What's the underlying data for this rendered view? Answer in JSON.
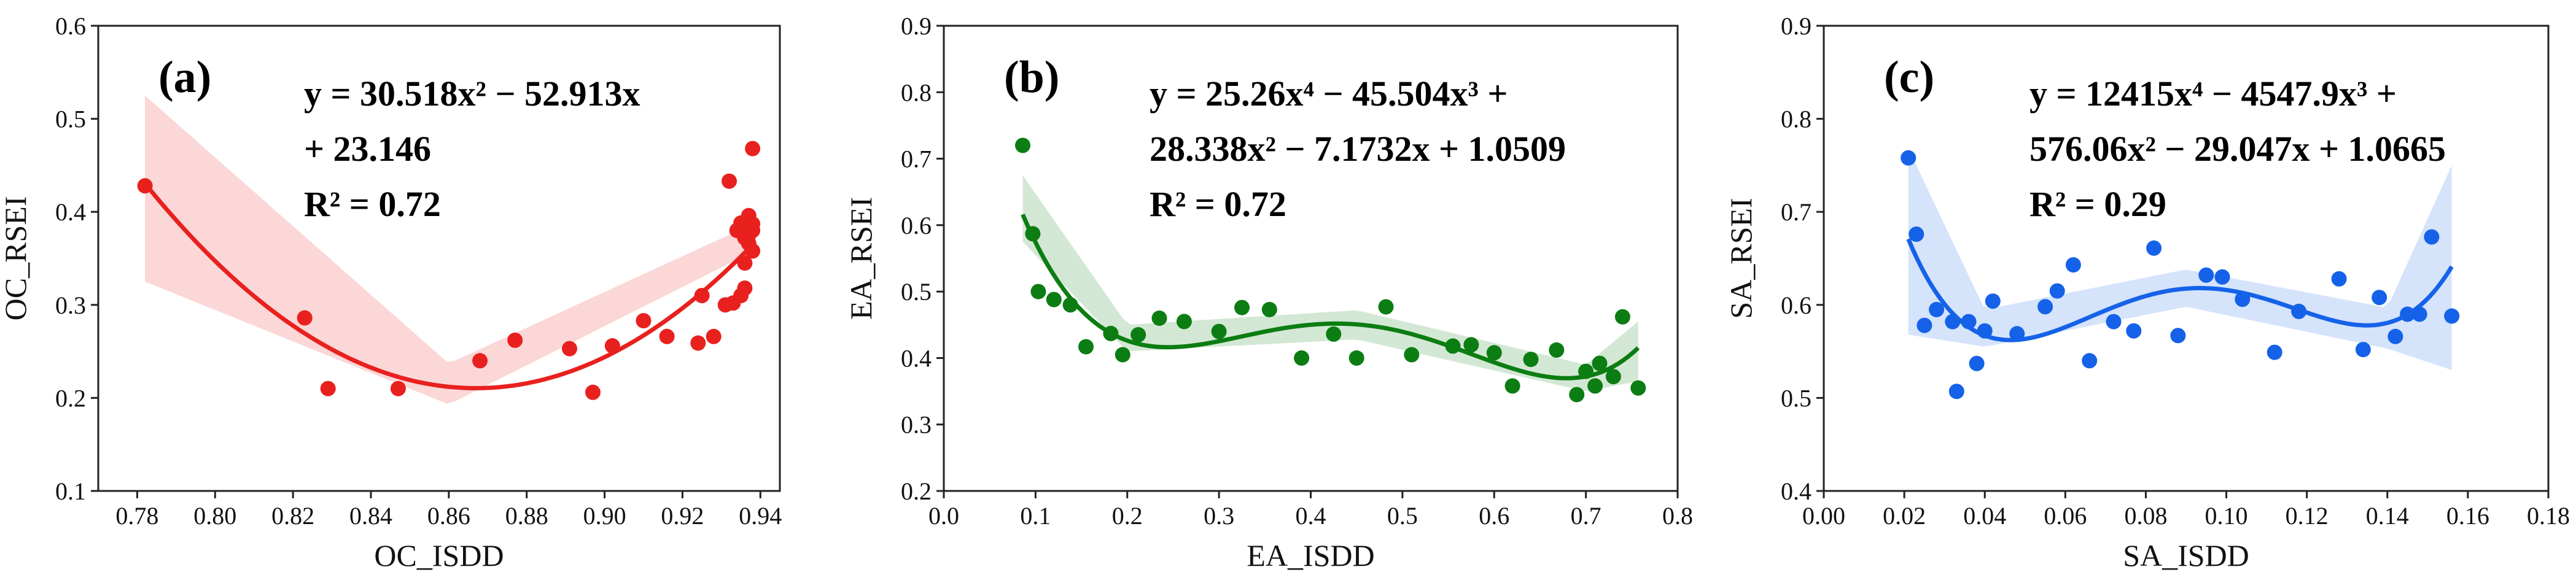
{
  "colors": {
    "red": "#e8211f",
    "green": "#0c7d12",
    "blue": "#1562e8"
  },
  "chart_data": [
    {
      "type": "scatter",
      "panel_label": "(a)",
      "xlabel": "OC_ISDD",
      "ylabel": "OC_RSEI",
      "xlim": [
        0.77,
        0.945
      ],
      "ylim": [
        0.1,
        0.6
      ],
      "xticks": [
        0.78,
        0.8,
        0.82,
        0.84,
        0.86,
        0.88,
        0.9,
        0.92,
        0.94
      ],
      "xtick_labels": [
        "0.78",
        "0.80",
        "0.82",
        "0.84",
        "0.86",
        "0.88",
        "0.90",
        "0.92",
        "0.94"
      ],
      "yticks": [
        0.1,
        0.2,
        0.3,
        0.4,
        0.5,
        0.6
      ],
      "ytick_labels": [
        "0.1",
        "0.2",
        "0.3",
        "0.4",
        "0.5",
        "0.6"
      ],
      "equation_lines": [
        "y = 30.518x² − 52.913x",
        "+ 23.146",
        "R² = 0.72"
      ],
      "fit": {
        "coefficients": [
          30.518,
          -52.913,
          23.146
        ],
        "x_range": [
          0.782,
          0.937
        ]
      },
      "band": {
        "center": [
          [
            0.782,
            0.425
          ],
          [
            0.86,
            0.215
          ],
          [
            0.937,
            0.37
          ]
        ],
        "half_width": [
          [
            0.782,
            0.1
          ],
          [
            0.86,
            0.022
          ],
          [
            0.937,
            0.015
          ]
        ]
      },
      "points": [
        [
          0.782,
          0.428
        ],
        [
          0.823,
          0.286
        ],
        [
          0.829,
          0.21
        ],
        [
          0.847,
          0.21
        ],
        [
          0.868,
          0.24
        ],
        [
          0.877,
          0.262
        ],
        [
          0.891,
          0.253
        ],
        [
          0.897,
          0.206
        ],
        [
          0.902,
          0.256
        ],
        [
          0.91,
          0.283
        ],
        [
          0.916,
          0.266
        ],
        [
          0.924,
          0.259
        ],
        [
          0.925,
          0.31
        ],
        [
          0.928,
          0.266
        ],
        [
          0.931,
          0.3
        ],
        [
          0.932,
          0.433
        ],
        [
          0.933,
          0.302
        ],
        [
          0.934,
          0.38
        ],
        [
          0.935,
          0.31
        ],
        [
          0.935,
          0.388
        ],
        [
          0.936,
          0.318
        ],
        [
          0.936,
          0.372
        ],
        [
          0.936,
          0.345
        ],
        [
          0.937,
          0.396
        ],
        [
          0.937,
          0.375
        ],
        [
          0.937,
          0.366
        ],
        [
          0.938,
          0.468
        ],
        [
          0.938,
          0.38
        ],
        [
          0.938,
          0.387
        ],
        [
          0.938,
          0.358
        ]
      ]
    },
    {
      "type": "scatter",
      "panel_label": "(b)",
      "xlabel": "EA_ISDD",
      "ylabel": "EA_RSEI",
      "xlim": [
        0.0,
        0.8
      ],
      "ylim": [
        0.2,
        0.9
      ],
      "xticks": [
        0.0,
        0.1,
        0.2,
        0.3,
        0.4,
        0.5,
        0.6,
        0.7,
        0.8
      ],
      "xtick_labels": [
        "0.0",
        "0.1",
        "0.2",
        "0.3",
        "0.4",
        "0.5",
        "0.6",
        "0.7",
        "0.8"
      ],
      "yticks": [
        0.2,
        0.3,
        0.4,
        0.5,
        0.6,
        0.7,
        0.8,
        0.9
      ],
      "ytick_labels": [
        "0.2",
        "0.3",
        "0.4",
        "0.5",
        "0.6",
        "0.7",
        "0.8",
        "0.9"
      ],
      "equation_lines": [
        "y = 25.26x⁴ − 45.504x³ +",
        "28.338x² − 7.1732x + 1.0509",
        "R² = 0.72"
      ],
      "fit": {
        "coefficients": [
          25.26,
          -45.504,
          28.338,
          -7.1732,
          1.0509
        ],
        "x_range": [
          0.086,
          0.757
        ]
      },
      "band": {
        "center": [
          [
            0.086,
            0.625
          ],
          [
            0.2,
            0.43
          ],
          [
            0.45,
            0.45
          ],
          [
            0.7,
            0.37
          ],
          [
            0.757,
            0.41
          ]
        ],
        "half_width": [
          [
            0.086,
            0.05
          ],
          [
            0.2,
            0.02
          ],
          [
            0.45,
            0.022
          ],
          [
            0.7,
            0.02
          ],
          [
            0.757,
            0.045
          ]
        ]
      },
      "points": [
        [
          0.086,
          0.72
        ],
        [
          0.097,
          0.587
        ],
        [
          0.103,
          0.5
        ],
        [
          0.12,
          0.488
        ],
        [
          0.138,
          0.48
        ],
        [
          0.155,
          0.417
        ],
        [
          0.182,
          0.437
        ],
        [
          0.195,
          0.405
        ],
        [
          0.212,
          0.435
        ],
        [
          0.235,
          0.46
        ],
        [
          0.262,
          0.455
        ],
        [
          0.3,
          0.44
        ],
        [
          0.325,
          0.476
        ],
        [
          0.355,
          0.473
        ],
        [
          0.39,
          0.4
        ],
        [
          0.425,
          0.436
        ],
        [
          0.45,
          0.4
        ],
        [
          0.482,
          0.477
        ],
        [
          0.51,
          0.405
        ],
        [
          0.555,
          0.418
        ],
        [
          0.575,
          0.42
        ],
        [
          0.6,
          0.408
        ],
        [
          0.62,
          0.358
        ],
        [
          0.64,
          0.398
        ],
        [
          0.668,
          0.412
        ],
        [
          0.69,
          0.345
        ],
        [
          0.7,
          0.38
        ],
        [
          0.71,
          0.358
        ],
        [
          0.715,
          0.392
        ],
        [
          0.73,
          0.372
        ],
        [
          0.74,
          0.462
        ],
        [
          0.757,
          0.355
        ]
      ]
    },
    {
      "type": "scatter",
      "panel_label": "(c)",
      "xlabel": "SA_ISDD",
      "ylabel": "SA_RSEI",
      "xlim": [
        0.0,
        0.18
      ],
      "ylim": [
        0.4,
        0.9
      ],
      "xticks": [
        0.0,
        0.02,
        0.04,
        0.06,
        0.08,
        0.1,
        0.12,
        0.14,
        0.16,
        0.18
      ],
      "xtick_labels": [
        "0.00",
        "0.02",
        "0.04",
        "0.06",
        "0.08",
        "0.10",
        "0.12",
        "0.14",
        "0.16",
        "0.18"
      ],
      "yticks": [
        0.4,
        0.5,
        0.6,
        0.7,
        0.8,
        0.9
      ],
      "ytick_labels": [
        "0.4",
        "0.5",
        "0.6",
        "0.7",
        "0.8",
        "0.9"
      ],
      "equation_lines": [
        "y = 12415x⁴ − 4547.9x³ +",
        "576.06x² − 29.047x + 1.0665",
        "R² = 0.29"
      ],
      "fit": {
        "coefficients": [
          12415,
          -4547.9,
          576.06,
          -29.047,
          1.0665
        ],
        "x_range": [
          0.021,
          0.156
        ]
      },
      "band": {
        "center": [
          [
            0.021,
            0.668
          ],
          [
            0.04,
            0.575
          ],
          [
            0.09,
            0.618
          ],
          [
            0.14,
            0.575
          ],
          [
            0.156,
            0.64
          ]
        ],
        "half_width": [
          [
            0.021,
            0.1
          ],
          [
            0.04,
            0.02
          ],
          [
            0.09,
            0.02
          ],
          [
            0.14,
            0.022
          ],
          [
            0.156,
            0.11
          ]
        ]
      },
      "points": [
        [
          0.021,
          0.758
        ],
        [
          0.023,
          0.676
        ],
        [
          0.025,
          0.578
        ],
        [
          0.028,
          0.595
        ],
        [
          0.032,
          0.582
        ],
        [
          0.033,
          0.507
        ],
        [
          0.036,
          0.582
        ],
        [
          0.038,
          0.537
        ],
        [
          0.04,
          0.572
        ],
        [
          0.042,
          0.604
        ],
        [
          0.048,
          0.569
        ],
        [
          0.055,
          0.598
        ],
        [
          0.058,
          0.615
        ],
        [
          0.062,
          0.643
        ],
        [
          0.066,
          0.54
        ],
        [
          0.072,
          0.582
        ],
        [
          0.077,
          0.572
        ],
        [
          0.082,
          0.661
        ],
        [
          0.088,
          0.567
        ],
        [
          0.095,
          0.632
        ],
        [
          0.099,
          0.63
        ],
        [
          0.104,
          0.606
        ],
        [
          0.112,
          0.549
        ],
        [
          0.118,
          0.593
        ],
        [
          0.128,
          0.628
        ],
        [
          0.134,
          0.552
        ],
        [
          0.138,
          0.608
        ],
        [
          0.142,
          0.566
        ],
        [
          0.145,
          0.59
        ],
        [
          0.148,
          0.59
        ],
        [
          0.151,
          0.673
        ],
        [
          0.156,
          0.588
        ]
      ]
    }
  ]
}
